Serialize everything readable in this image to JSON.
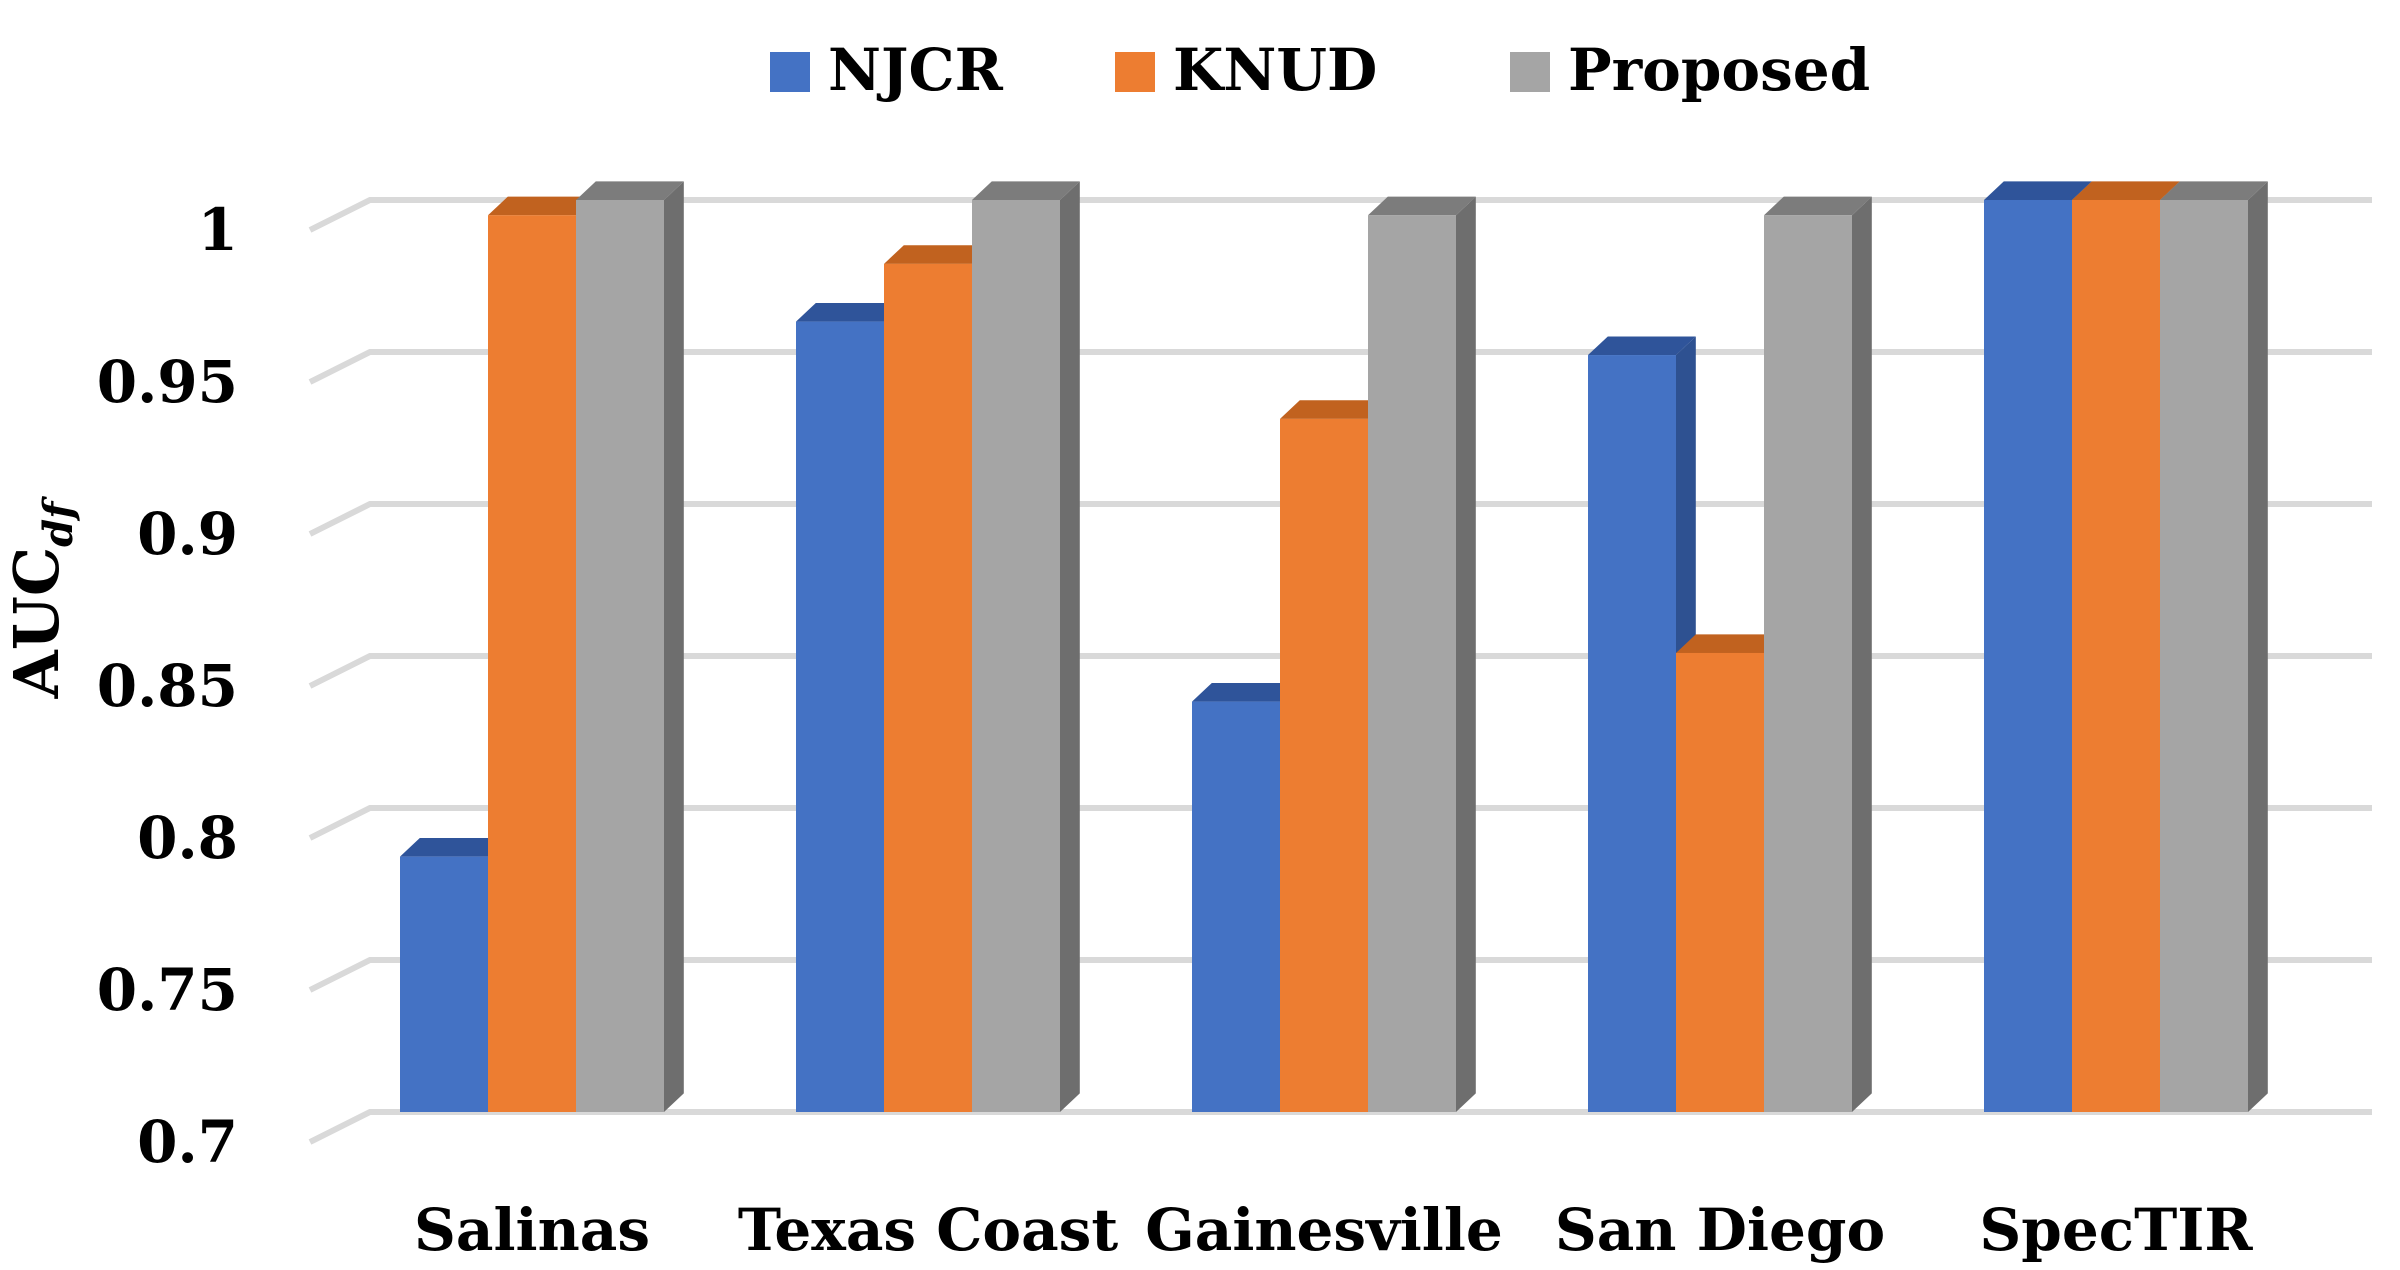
{
  "chart_data": {
    "type": "bar",
    "title": "",
    "xlabel": "",
    "ylabel": "AUC",
    "ylabel_subscript": "df",
    "ylim": [
      0.7,
      1.0
    ],
    "yticks": [
      "0.7",
      "0.75",
      "0.8",
      "0.85",
      "0.9",
      "0.95",
      "1"
    ],
    "categories": [
      "Salinas",
      "Texas Coast",
      "Gainesville",
      "San Diego",
      "SpecTIR"
    ],
    "series": [
      {
        "name": "NJCR",
        "color": "#4472c4",
        "side": "#2e5191",
        "top": "#2f549a",
        "values": [
          0.784,
          0.96,
          0.835,
          0.949,
          1.0
        ]
      },
      {
        "name": "KNUD",
        "color": "#ed7d31",
        "side": "#b85c1f",
        "top": "#c1621f",
        "values": [
          0.995,
          0.979,
          0.928,
          0.851,
          1.0
        ]
      },
      {
        "name": "Proposed",
        "color": "#a5a5a5",
        "side": "#6e6e6e",
        "top": "#7c7c7c",
        "values": [
          1.0,
          1.0,
          0.995,
          0.995,
          1.0
        ]
      }
    ],
    "legend": "top"
  }
}
